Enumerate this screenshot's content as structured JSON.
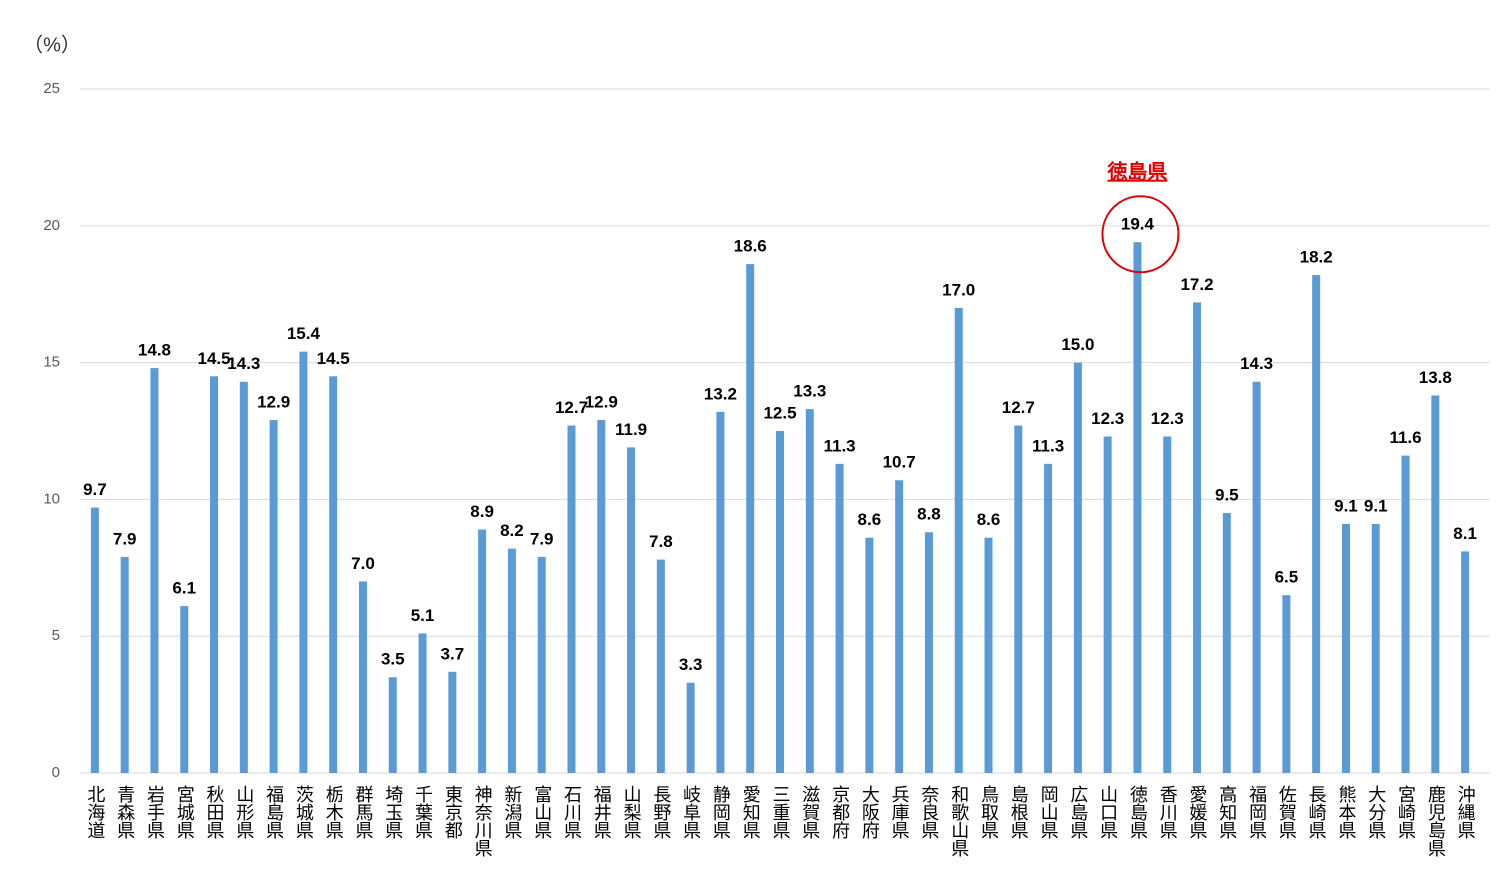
{
  "chart_data": {
    "type": "bar",
    "y_label": "（%）",
    "categories": [
      "北海道",
      "青森県",
      "岩手県",
      "宮城県",
      "秋田県",
      "山形県",
      "福島県",
      "茨城県",
      "栃木県",
      "群馬県",
      "埼玉県",
      "千葉県",
      "東京都",
      "神奈川県",
      "新潟県",
      "富山県",
      "石川県",
      "福井県",
      "山梨県",
      "長野県",
      "岐阜県",
      "静岡県",
      "愛知県",
      "三重県",
      "滋賀県",
      "京都府",
      "大阪府",
      "兵庫県",
      "奈良県",
      "和歌山県",
      "鳥取県",
      "島根県",
      "岡山県",
      "広島県",
      "山口県",
      "徳島県",
      "香川県",
      "愛媛県",
      "高知県",
      "福岡県",
      "佐賀県",
      "長崎県",
      "熊本県",
      "大分県",
      "宮崎県",
      "鹿児島県",
      "沖縄県"
    ],
    "values": [
      9.7,
      7.9,
      14.8,
      6.1,
      14.5,
      14.3,
      12.9,
      15.4,
      14.5,
      7.0,
      3.5,
      5.1,
      3.7,
      8.9,
      8.2,
      7.9,
      12.7,
      12.9,
      11.9,
      7.8,
      3.3,
      13.2,
      18.6,
      12.5,
      13.3,
      11.3,
      8.6,
      10.7,
      8.8,
      17.0,
      8.6,
      12.7,
      11.3,
      15.0,
      12.3,
      19.4,
      12.3,
      17.2,
      9.5,
      14.3,
      6.5,
      18.2,
      9.1,
      9.1,
      11.6,
      13.8,
      8.1
    ],
    "value_labels": [
      "9.7",
      "7.9",
      "14.8",
      "6.1",
      "14.5",
      "14.3",
      "12.9",
      "15.4",
      "14.5",
      "7.0",
      "3.5",
      "5.1",
      "3.7",
      "8.9",
      "8.2",
      "7.9",
      "12.7",
      "12.9",
      "11.9",
      "7.8",
      "3.3",
      "13.2",
      "18.6",
      "12.5",
      "13.3",
      "11.3",
      "8.6",
      "10.7",
      "8.8",
      "17.0",
      "8.6",
      "12.7",
      "11.3",
      "15.0",
      "12.3",
      "19.4",
      "12.3",
      "17.2",
      "9.5",
      "14.3",
      "6.5",
      "18.2",
      "9.1",
      "9.1",
      "11.6",
      "13.8",
      "8.1"
    ],
    "color": "#5b9bd5",
    "ylim": [
      0,
      25
    ],
    "yticks": [
      0,
      5,
      10,
      15,
      20,
      25
    ],
    "grid": true,
    "annotations": [
      {
        "text": "徳島県",
        "color": "#e00000"
      }
    ]
  }
}
